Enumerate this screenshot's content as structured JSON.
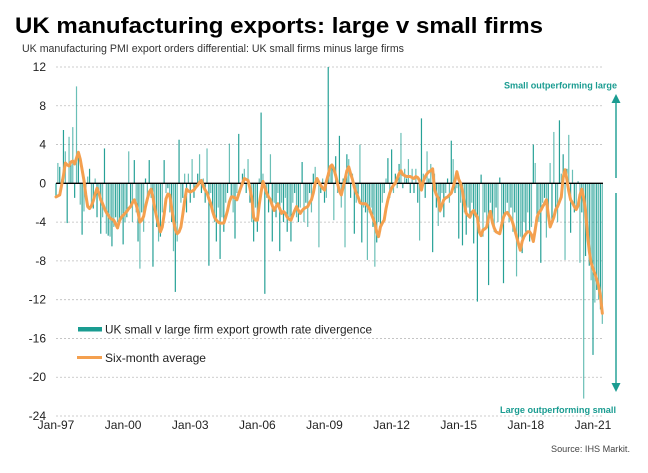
{
  "header": {
    "title": "UK manufacturing exports: large v small firms",
    "subtitle": "UK manufacturing PMI export orders differential: UK small  firms minus large firms"
  },
  "annotations": {
    "top": "Small outperforming large",
    "bottom": "Large outperforming small"
  },
  "source": "Source: IHS Markit.",
  "colors": {
    "bars": "#1a9c91",
    "average_line": "#f4a04f",
    "annotation": "#1a9c91",
    "zero_line": "#000000"
  },
  "legend": {
    "items": [
      {
        "label": "UK small v large firm export growth rate divergence",
        "type": "bar"
      },
      {
        "label": "Six-month average",
        "type": "line"
      }
    ]
  },
  "chart_data": {
    "type": "bar",
    "title": "UK manufacturing exports: large v small firms",
    "subtitle": "UK manufacturing PMI export orders differential: UK small firms minus large firms",
    "xlabel": "",
    "ylabel": "",
    "frequency": "monthly",
    "x_start": "Jan-97",
    "x_end": "Jun-21",
    "ylim": [
      -24,
      12
    ],
    "y_ticks": [
      12,
      8,
      4,
      0,
      -4,
      -8,
      -12,
      -16,
      -20,
      -24
    ],
    "x_ticks": [
      {
        "label": "Jan-97",
        "month_index": 0
      },
      {
        "label": "Jan-00",
        "month_index": 36
      },
      {
        "label": "Jan-03",
        "month_index": 72
      },
      {
        "label": "Jan-06",
        "month_index": 108
      },
      {
        "label": "Jan-09",
        "month_index": 144
      },
      {
        "label": "Jan-12",
        "month_index": 180
      },
      {
        "label": "Jan-15",
        "month_index": 216
      },
      {
        "label": "Jan-18",
        "month_index": 252
      },
      {
        "label": "Jan-21",
        "month_index": 288
      }
    ],
    "grid": true,
    "legend_position": "bottom-left",
    "series": [
      {
        "name": "UK small v large firm export growth rate divergence",
        "type": "bar",
        "values": [
          -1.5,
          2.1,
          1.7,
          0.4,
          5.5,
          3.3,
          -4.1,
          4.8,
          2.1,
          5.8,
          -1.5,
          10.0,
          2.8,
          -2.2,
          -5.3,
          -2.9,
          -1.3,
          0.7,
          1.5,
          -2.4,
          -2.6,
          0.5,
          -3.5,
          -1.0,
          -5.2,
          -3.5,
          3.6,
          -5.2,
          -5.4,
          -5.5,
          -6.5,
          -4.5,
          -3.5,
          -4.0,
          -3.8,
          -3.5,
          -6.3,
          -4.0,
          -3.5,
          3.3,
          -2.5,
          -4.0,
          2.4,
          -3.0,
          -6.0,
          -8.8,
          -3.0,
          -5.0,
          0.5,
          -2.0,
          2.4,
          -1.5,
          -8.6,
          -3.0,
          -4.5,
          -6.0,
          -5.5,
          -3.0,
          2.4,
          -1.0,
          -0.5,
          -3.0,
          -4.0,
          -7.0,
          -11.2,
          -6.0,
          4.5,
          -2.0,
          -1.5,
          1.0,
          -3.0,
          1.0,
          -2.0,
          2.5,
          -1.5,
          -0.5,
          1.0,
          3.0,
          -1.0,
          0.5,
          -2.0,
          3.6,
          -8.5,
          -1.0,
          -3.0,
          -4.0,
          -6.0,
          -2.5,
          -7.8,
          -3.5,
          -5.0,
          -2.0,
          -1.0,
          4.1,
          -1.5,
          -3.0,
          -5.7,
          -1.0,
          5.1,
          -0.5,
          1.0,
          1.5,
          -1.0,
          2.5,
          -2.0,
          -4.0,
          -6.0,
          -2.5,
          -5.0,
          0.5,
          7.3,
          1.0,
          -11.4,
          -1.5,
          -3.0,
          3.0,
          -6.0,
          -2.0,
          -3.5,
          -1.0,
          -7.0,
          -2.0,
          -4.0,
          -1.5,
          -5.0,
          -3.5,
          -6.0,
          -2.0,
          -1.0,
          -3.5,
          -4.0,
          -2.5,
          2.2,
          -4.0,
          -2.0,
          -4.5,
          -1.0,
          -3.0,
          1.0,
          1.7,
          0.5,
          -6.6,
          -1.0,
          0.5,
          -2.0,
          -1.5,
          12.0,
          1.5,
          2.0,
          -3.8,
          2.8,
          -1.0,
          4.9,
          -2.5,
          0.5,
          -6.6,
          3.0,
          2.5,
          -1.5,
          1.0,
          -5.2,
          -2.0,
          -1.5,
          4.0,
          -6.1,
          -2.5,
          -3.0,
          -7.9,
          -3.0,
          -2.5,
          -4.5,
          -8.6,
          -6.1,
          -4.0,
          -5.0,
          -2.0,
          -1.0,
          0.5,
          2.6,
          -1.5,
          3.5,
          -1.0,
          1.0,
          -0.5,
          2.0,
          5.2,
          -0.5,
          1.5,
          0.5,
          2.5,
          -1.0,
          1.5,
          -1.0,
          1.5,
          -2.0,
          -5.9,
          6.7,
          1.0,
          -1.5,
          3.3,
          0.5,
          2.0,
          -7.1,
          1.0,
          -2.5,
          -4.4,
          -3.0,
          -1.0,
          -3.5,
          -1.0,
          0.5,
          -2.0,
          4.4,
          2.5,
          -1.0,
          -0.5,
          -5.7,
          -2.0,
          -6.4,
          -3.0,
          -5.3,
          -2.5,
          -3.5,
          -2.0,
          -6.2,
          -3.5,
          -12.2,
          -4.0,
          0.9,
          -5.5,
          -3.0,
          -4.5,
          -10.5,
          -2.0,
          -3.5,
          -5.0,
          -2.5,
          -4.0,
          0.6,
          -4.5,
          -10.3,
          -3.0,
          -2.0,
          -4.0,
          -2.5,
          -5.0,
          -3.0,
          -9.6,
          -6.0,
          -5.5,
          -7.2,
          -4.0,
          -5.0,
          -3.0,
          -6.0,
          -4.5,
          4.0,
          2.1,
          -3.5,
          -4.0,
          -8.2,
          -2.0,
          -1.5,
          -5.6,
          -3.5,
          2.1,
          -4.0,
          5.3,
          -2.5,
          -4.0,
          6.5,
          1.0,
          3.0,
          -7.9,
          1.5,
          5.0,
          -5.1,
          1.4,
          -3.0,
          -2.5,
          0.2,
          -8.2,
          -3.0,
          -22.2,
          -7.5,
          -6.0,
          -8.5,
          -10.0,
          -17.7,
          -12.3,
          -11.0,
          -12.0,
          -13.0,
          -14.5
        ]
      },
      {
        "name": "Six-month average",
        "type": "line",
        "values": [
          -1.4,
          -1.3,
          -1.2,
          -0.2,
          0.8,
          2.1,
          1.9,
          1.8,
          2.2,
          2.3,
          2.0,
          2.6,
          3.2,
          2.5,
          1.4,
          0.3,
          -1.2,
          -2.4,
          -2.6,
          -2.3,
          -1.8,
          -1.1,
          -0.5,
          -1.0,
          -1.7,
          -2.1,
          -2.6,
          -3.0,
          -3.3,
          -3.6,
          -3.7,
          -3.8,
          -4.2,
          -4.6,
          -3.9,
          -3.5,
          -3.3,
          -3.1,
          -2.9,
          -2.6,
          -2.4,
          -2.0,
          -1.7,
          -2.2,
          -3.0,
          -4.0,
          -3.8,
          -3.4,
          -2.4,
          -1.6,
          -0.9,
          -0.6,
          -1.4,
          -2.6,
          -3.5,
          -4.3,
          -5.0,
          -4.5,
          -3.2,
          -1.6,
          -1.1,
          -1.2,
          -2.5,
          -3.8,
          -4.8,
          -5.2,
          -5.0,
          -4.5,
          -3.2,
          -1.8,
          -0.6,
          -0.8,
          -0.9,
          -0.8,
          -0.7,
          -0.4,
          -0.2,
          0.1,
          0.3,
          -0.3,
          -0.7,
          -1.0,
          -1.6,
          -2.1,
          -2.9,
          -3.5,
          -3.8,
          -4.0,
          -4.1,
          -4.1,
          -4.1,
          -3.5,
          -2.8,
          -1.9,
          -1.4,
          -1.4,
          -1.5,
          -1.7,
          -1.1,
          -0.5,
          0.0,
          0.5,
          0.4,
          0.3,
          -0.5,
          -1.5,
          -3.5,
          -3.8,
          -3.8,
          -2.2,
          -0.9,
          0.2,
          -0.4,
          -1.0,
          -1.4,
          -1.7,
          -2.3,
          -2.8,
          -2.4,
          -2.1,
          -2.6,
          -3.1,
          -2.9,
          -3.1,
          -3.5,
          -3.7,
          -3.8,
          -3.3,
          -2.8,
          -2.4,
          -2.8,
          -3.1,
          -2.8,
          -2.6,
          -2.5,
          -2.4,
          -2.0,
          -1.7,
          -1.0,
          0.0,
          0.5,
          0.1,
          -0.2,
          -0.5,
          -0.7,
          0.2,
          0.9,
          1.7,
          1.9,
          1.5,
          0.8,
          0.0,
          -0.8,
          -1.2,
          -0.4,
          0.4,
          1.3,
          1.7,
          1.0,
          0.4,
          -0.4,
          -1.0,
          -1.4,
          -2.0,
          -2.1,
          -2.1,
          -2.1,
          -2.3,
          -2.6,
          -3.1,
          -3.6,
          -4.1,
          -5.0,
          -5.5,
          -4.5,
          -4.1,
          -3.8,
          -2.6,
          -1.7,
          -1.0,
          -0.5,
          -0.2,
          0.0,
          0.5,
          1.0,
          1.3,
          0.9,
          0.8,
          0.7,
          0.7,
          0.7,
          0.6,
          0.5,
          0.7,
          0.6,
          0.3,
          -0.7,
          0.2,
          0.7,
          1.0,
          1.2,
          1.3,
          1.5,
          -0.6,
          -1.2,
          -1.5,
          -2.8,
          -2.2,
          -1.7,
          -1.5,
          -1.4,
          -1.2,
          -1.0,
          -0.4,
          0.3,
          1.2,
          0.4,
          0.0,
          -0.8,
          -2.1,
          -3.1,
          -3.3,
          -3.5,
          -3.0,
          -2.8,
          -3.2,
          -3.5,
          -5.0,
          -5.4,
          -4.8,
          -4.7,
          -4.5,
          -3.5,
          -2.9,
          -4.0,
          -4.6,
          -5.0,
          -5.1,
          -5.2,
          -4.3,
          -3.5,
          -3.1,
          -3.0,
          -3.3,
          -3.6,
          -4.1,
          -4.8,
          -5.5,
          -6.2,
          -6.9,
          -6.0,
          -5.5,
          -5.2,
          -5.0,
          -5.0,
          -5.3,
          -6.0,
          -4.8,
          -3.5,
          -3.0,
          -2.8,
          -2.4,
          -2.1,
          -1.7,
          -3.2,
          -4.5,
          -4.0,
          -3.5,
          -2.7,
          -2.4,
          -1.9,
          -1.4,
          0.6,
          1.4,
          0.4,
          -0.8,
          -1.7,
          -2.0,
          -2.4,
          -2.7,
          -2.3,
          -1.2,
          -0.6,
          -1.5,
          -2.8,
          -5.2,
          -7.0,
          -8.2,
          -8.8,
          -9.3,
          -9.9,
          -10.6,
          -11.6,
          -13.4
        ]
      }
    ]
  }
}
